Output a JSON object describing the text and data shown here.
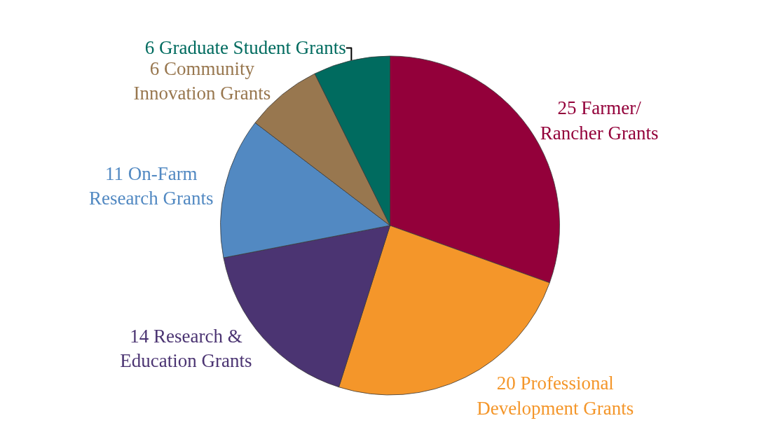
{
  "chart_data": {
    "type": "pie",
    "categories": [
      "25 Farmer/\nRancher Grants",
      "20 Professional\nDevelopment Grants",
      "14 Research &\nEducation Grants",
      "11 On-Farm\nResearch Grants",
      "6 Community\nInnovation Grants",
      "6 Graduate Student Grants"
    ],
    "values": [
      25,
      20,
      14,
      11,
      6,
      6
    ],
    "colors": [
      "#93003a",
      "#f4962a",
      "#4b3472",
      "#5289c2",
      "#98774f",
      "#006b5f"
    ],
    "legend": false
  }
}
